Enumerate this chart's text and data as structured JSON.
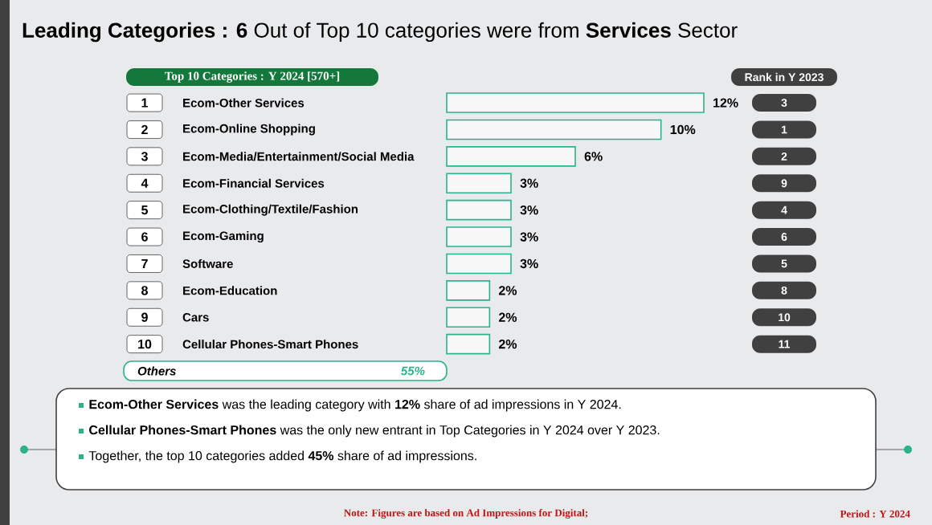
{
  "chart_data": {
    "type": "bar",
    "orientation": "horizontal",
    "title": "**Leading Categories :** **6** Out of Top 10 categories were from **Services** Sector",
    "subtitle": "Top 10 Categories : Y 2024 [570+]",
    "categories": [
      "Ecom-Other Services",
      "Ecom-Online Shopping",
      "Ecom-Media/Entertainment/Social Media",
      "Ecom-Financial Services",
      "Ecom-Clothing/Textile/Fashion",
      "Ecom-Gaming",
      "Software",
      "Ecom-Education",
      "Cars",
      "Cellular Phones-Smart Phones"
    ],
    "values": [
      12,
      10,
      6,
      3,
      3,
      3,
      3,
      2,
      2,
      2
    ],
    "value_labels": [
      "12%",
      "10%",
      "6%",
      "3%",
      "3%",
      "3%",
      "3%",
      "2%",
      "2%",
      "2%"
    ],
    "color": "#f7f7f7",
    "annotations": [
      "Rank in Y 2023",
      "1",
      "2",
      "3",
      "4",
      "5",
      "6",
      "7",
      "8",
      "9",
      "10",
      "3",
      "1",
      "2",
      "9",
      "4",
      "6",
      "5",
      "8",
      "10",
      "11",
      "Others",
      "55%",
      "**Ecom-Other Services** was the leading category with **12%** share of ad impressions in Y 2024.",
      "**Cellular Phones-Smart Phones** was the only new entrant in Top Categories in Y 2024 over Y 2023.",
      "Together, the top 10 categories added **45%** share of ad impressions.",
      "Note: Figures are based on Ad Impressions for Digital;",
      "Period : Y 2024"
    ]
  }
}
